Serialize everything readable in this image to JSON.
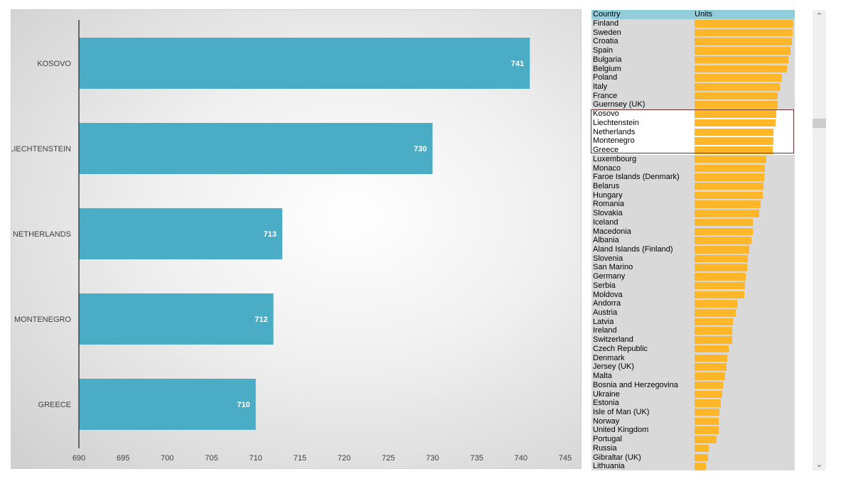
{
  "chart_data": {
    "type": "bar",
    "orientation": "horizontal",
    "categories": [
      "KOSOVO",
      "LIECHTENSTEIN",
      "NETHERLANDS",
      "MONTENEGRO",
      "GREECE"
    ],
    "values": [
      741,
      730,
      713,
      712,
      710
    ],
    "xlim": [
      690,
      745
    ],
    "xticks": [
      690,
      695,
      700,
      705,
      710,
      715,
      720,
      725,
      730,
      735,
      740,
      745
    ],
    "bar_color": "#4bacc6",
    "grid": false,
    "legend": "none"
  },
  "table": {
    "headers": [
      "Country",
      "Units"
    ],
    "header_color": "#92cddc",
    "bar_color": "#ffb628",
    "rows": [
      {
        "country": "Finland",
        "units": 894
      },
      {
        "country": "Sweden",
        "units": 887
      },
      {
        "country": "Croatia",
        "units": 881
      },
      {
        "country": "Spain",
        "units": 868
      },
      {
        "country": "Bulgaria",
        "units": 849
      },
      {
        "country": "Belgium",
        "units": 836
      },
      {
        "country": "Poland",
        "units": 791
      },
      {
        "country": "Italy",
        "units": 772
      },
      {
        "country": "France",
        "units": 752
      },
      {
        "country": "Guernsey (UK)",
        "units": 750
      },
      {
        "country": "Kosovo",
        "units": 741,
        "highlight": true
      },
      {
        "country": "Liechtenstein",
        "units": 730,
        "highlight": true
      },
      {
        "country": "Netherlands",
        "units": 713,
        "highlight": true
      },
      {
        "country": "Montenegro",
        "units": 712,
        "highlight": true
      },
      {
        "country": "Greece",
        "units": 710,
        "highlight": true
      },
      {
        "country": "Luxembourg",
        "units": 650
      },
      {
        "country": "Monaco",
        "units": 637
      },
      {
        "country": "Faroe Islands (Denmark)",
        "units": 630
      },
      {
        "country": "Belarus",
        "units": 624
      },
      {
        "country": "Hungary",
        "units": 617
      },
      {
        "country": "Romania",
        "units": 598
      },
      {
        "country": "Slovakia",
        "units": 585
      },
      {
        "country": "Iceland",
        "units": 527
      },
      {
        "country": "Macedonia",
        "units": 527
      },
      {
        "country": "Albania",
        "units": 514
      },
      {
        "country": "Aland Islands (Finland)",
        "units": 495
      },
      {
        "country": "Slovenia",
        "units": 482
      },
      {
        "country": "San Marino",
        "units": 476
      },
      {
        "country": "Germany",
        "units": 463
      },
      {
        "country": "Serbia",
        "units": 457
      },
      {
        "country": "Moldova",
        "units": 450
      },
      {
        "country": "Andorra",
        "units": 386
      },
      {
        "country": "Austria",
        "units": 373
      },
      {
        "country": "Latvia",
        "units": 347
      },
      {
        "country": "Ireland",
        "units": 341
      },
      {
        "country": "Switzerland",
        "units": 341
      },
      {
        "country": "Czech Republic",
        "units": 309
      },
      {
        "country": "Denmark",
        "units": 296
      },
      {
        "country": "Jersey (UK)",
        "units": 289
      },
      {
        "country": "Malta",
        "units": 276
      },
      {
        "country": "Bosnia and Herzegovina",
        "units": 257
      },
      {
        "country": "Ukraine",
        "units": 251
      },
      {
        "country": "Estonia",
        "units": 238
      },
      {
        "country": "Isle of Man (UK)",
        "units": 225
      },
      {
        "country": "Norway",
        "units": 219
      },
      {
        "country": "United Kingdom",
        "units": 219
      },
      {
        "country": "Portugal",
        "units": 199
      },
      {
        "country": "Russia",
        "units": 129
      },
      {
        "country": "Gibraltar (UK)",
        "units": 122
      },
      {
        "country": "Lithuania",
        "units": 103
      }
    ]
  },
  "scrollbar": {
    "up_icon": "chevron-up-icon",
    "down_icon": "chevron-down-icon"
  }
}
